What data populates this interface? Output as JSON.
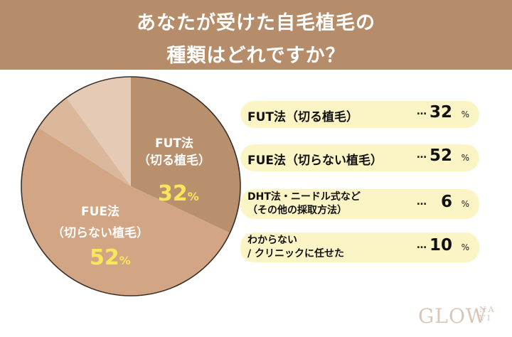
{
  "header": {
    "title_line1": "あなたが受けた自毛植毛の",
    "title_line2": "種類はどれですか？"
  },
  "colors": {
    "header_bg": "#b58d6a",
    "slice_fut": "#b8906e",
    "slice_fue": "#d2a684",
    "slice_dht": "#dbb89b",
    "slice_unknown": "#e5cbb5",
    "pct_highlight": "#f6e85a",
    "legend_bg": "#fbf5c6"
  },
  "pie_labels": {
    "fut_name": "FUT法",
    "fut_sub": "（切る植毛）",
    "fut_pct": "32",
    "fue_name": "FUE法",
    "fue_sub": "（切らない植毛）",
    "fue_pct": "52",
    "pct_sign": "%"
  },
  "legend": {
    "items": [
      {
        "line1": "FUT法（切る植毛）",
        "line2": "",
        "dots": "…",
        "value": "32",
        "unit": "%"
      },
      {
        "line1": "FUE法（切らない植毛）",
        "line2": "",
        "dots": "…",
        "value": "52",
        "unit": "%"
      },
      {
        "line1": "DHT法・ニードル式など",
        "line2": "（その他の採取方法）",
        "dots": "…",
        "value": "6",
        "unit": "%"
      },
      {
        "line1": "わからない",
        "line2": "/ クリニックに任せた",
        "dots": "…",
        "value": "10",
        "unit": "%"
      }
    ]
  },
  "logo": {
    "main": "GLOW",
    "sub_top": "NA",
    "sub_bottom": "VI"
  },
  "chart_data": {
    "type": "pie",
    "title": "あなたが受けた自毛植毛の種類はどれですか？",
    "categories": [
      "FUT法（切る植毛）",
      "FUE法（切らない植毛）",
      "DHT法・ニードル式など（その他の採取方法）",
      "わからない / クリニックに任せた"
    ],
    "values": [
      32,
      52,
      6,
      10
    ],
    "unit": "%",
    "start_angle": "12 o'clock, clockwise",
    "legend_position": "right"
  }
}
